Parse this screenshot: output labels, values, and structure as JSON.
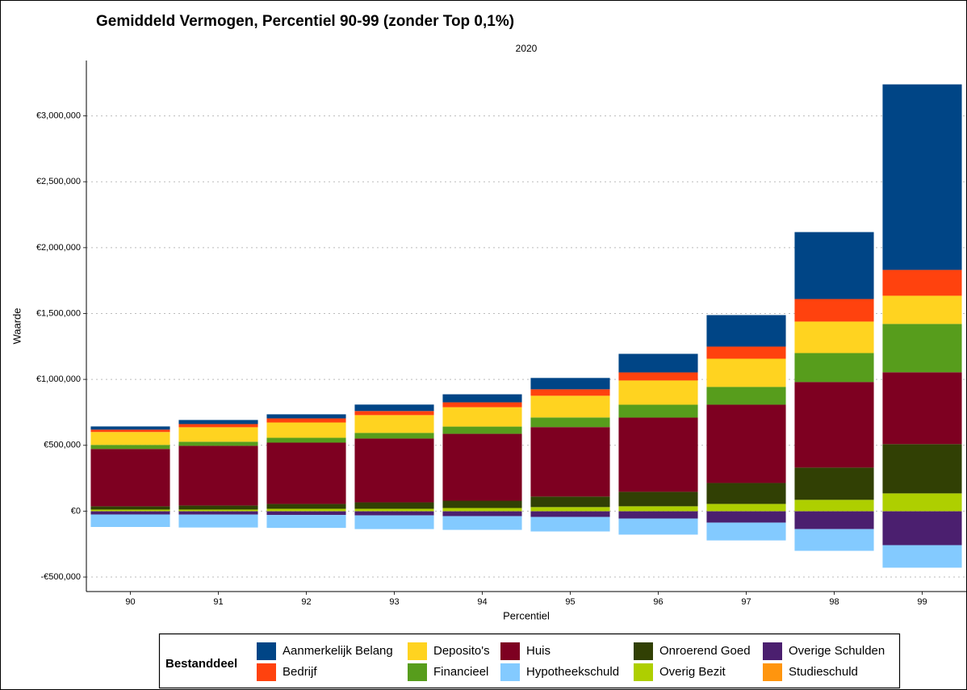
{
  "chart_data": {
    "type": "bar",
    "stacked": true,
    "title": "Gemiddeld Vermogen, Percentiel 90-99 (zonder Top 0,1%)",
    "subtitle": "2020",
    "x_label": "Percentiel",
    "y_label": "Waarde",
    "legend_title": "Bestanddeel",
    "categories": [
      "90",
      "91",
      "92",
      "93",
      "94",
      "95",
      "96",
      "97",
      "98",
      "99"
    ],
    "ylim": [
      -610000,
      3420000
    ],
    "yticks": [
      {
        "value": -500000,
        "label": "-€500,000"
      },
      {
        "value": 0,
        "label": "€0"
      },
      {
        "value": 500000,
        "label": "€500,000"
      },
      {
        "value": 1000000,
        "label": "€1,000,000"
      },
      {
        "value": 1500000,
        "label": "€1,500,000"
      },
      {
        "value": 2000000,
        "label": "€2,000,000"
      },
      {
        "value": 2500000,
        "label": "€2,500,000"
      },
      {
        "value": 3000000,
        "label": "€3,000,000"
      }
    ],
    "grid": true,
    "legend_position": "bottom",
    "series": [
      {
        "name": "Aanmerkelijk Belang",
        "color": "#004586",
        "values": [
          24000,
          31000,
          31000,
          49000,
          61000,
          86000,
          141000,
          239000,
          508000,
          1408000
        ]
      },
      {
        "name": "Bedrijf",
        "color": "#ff420e",
        "values": [
          18000,
          24000,
          31000,
          31000,
          37000,
          49000,
          61000,
          92000,
          171000,
          196000
        ]
      },
      {
        "name": "Deposito's",
        "color": "#ffd320",
        "values": [
          98000,
          110000,
          116000,
          135000,
          147000,
          165000,
          184000,
          214000,
          239000,
          214000
        ]
      },
      {
        "name": "Financieel",
        "color": "#579d1c",
        "values": [
          31000,
          31000,
          37000,
          43000,
          55000,
          73000,
          98000,
          135000,
          220000,
          367000
        ]
      },
      {
        "name": "Huis",
        "color": "#7e0021",
        "values": [
          435000,
          453000,
          465000,
          484000,
          508000,
          527000,
          563000,
          594000,
          649000,
          545000
        ]
      },
      {
        "name": "Hypotheekschuld",
        "color": "#83caff",
        "values": [
          -95000,
          -98000,
          -98000,
          -104000,
          -104000,
          -110000,
          -122000,
          -135000,
          -165000,
          -171000
        ]
      },
      {
        "name": "Onroerend Goed",
        "color": "#314004",
        "values": [
          25000,
          31000,
          37000,
          49000,
          55000,
          80000,
          110000,
          159000,
          245000,
          374000
        ]
      },
      {
        "name": "Overig Bezit",
        "color": "#aecf00",
        "values": [
          12000,
          12000,
          18000,
          18000,
          24000,
          31000,
          37000,
          55000,
          86000,
          135000
        ]
      },
      {
        "name": "Overige Schulden",
        "color": "#4b1f6f",
        "values": [
          -24000,
          -25000,
          -28000,
          -31000,
          -37000,
          -43000,
          -55000,
          -86000,
          -135000,
          -257000
        ]
      },
      {
        "name": "Studieschuld",
        "color": "#ff950e",
        "values": [
          -1000,
          -1000,
          -1000,
          -1000,
          -1000,
          -1000,
          -1000,
          -1000,
          -1000,
          -1000
        ]
      }
    ]
  }
}
